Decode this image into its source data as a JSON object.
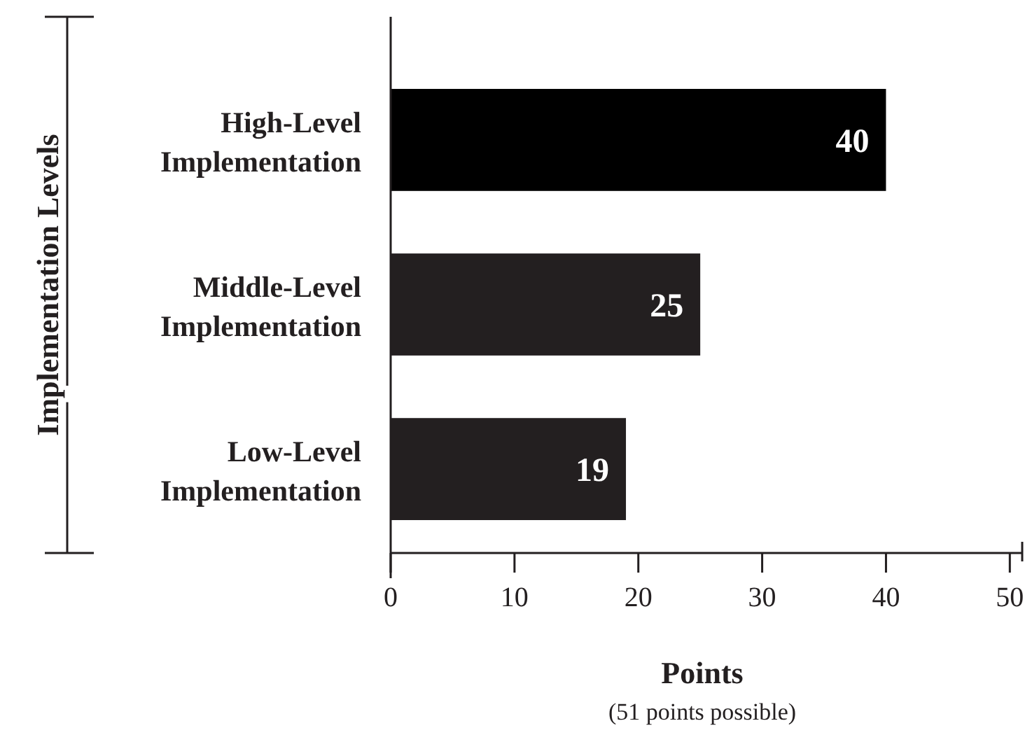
{
  "chart_data": {
    "type": "bar",
    "orientation": "horizontal",
    "categories": [
      "High-Level Implementation",
      "Middle-Level Implementation",
      "Low-Level Implementation"
    ],
    "values": [
      40,
      25,
      19
    ],
    "colors": [
      "#000000",
      "#231f20",
      "#231f20"
    ],
    "xlim": [
      0,
      51
    ],
    "xticks": [
      0,
      10,
      20,
      30,
      40,
      50,
      {
        "value": 51,
        "label": null
      }
    ],
    "xlabel": "Points",
    "ylabel": "Implementation Levels",
    "annotations": [
      "(51 points possible)"
    ],
    "data_labels": true,
    "grid": false
  }
}
